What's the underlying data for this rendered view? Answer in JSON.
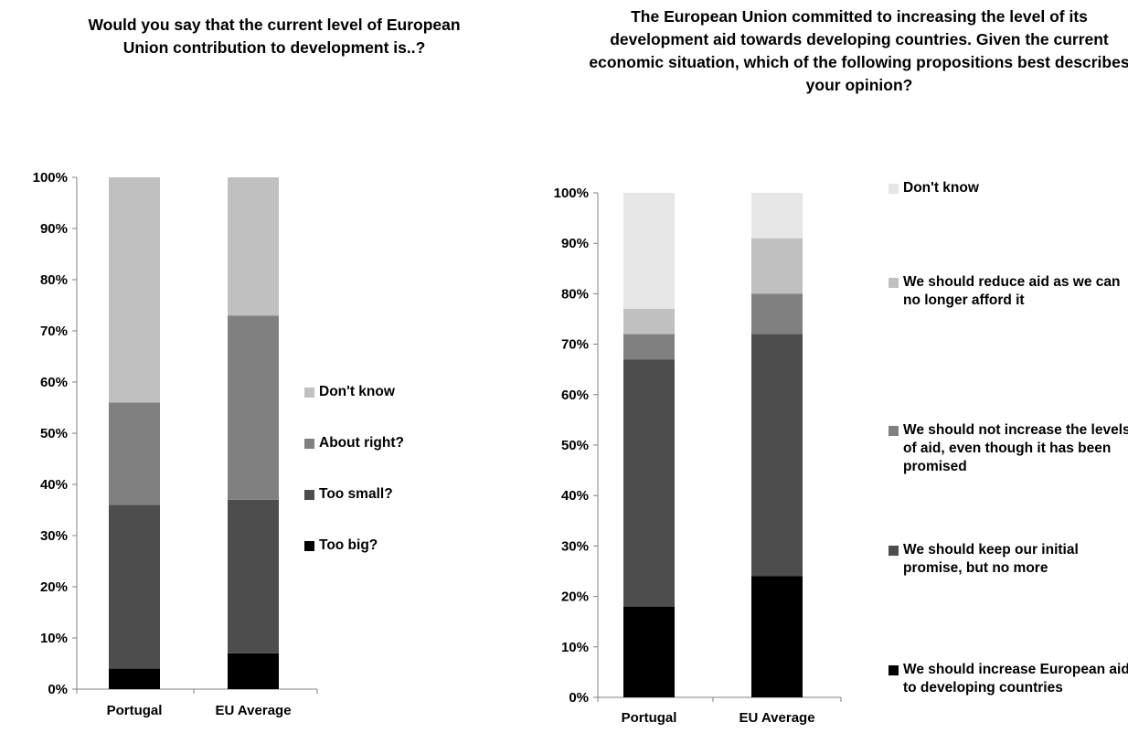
{
  "colors": {
    "too_big": "#000000",
    "too_small": "#4d4d4d",
    "about_right": "#808080",
    "dont_know_1": "#c0c0c0",
    "increase": "#000000",
    "keep": "#4d4d4d",
    "not_increase": "#808080",
    "reduce": "#c0c0c0",
    "dont_know_2": "#e6e6e6"
  },
  "chart_data": [
    {
      "type": "bar",
      "stacked": true,
      "title": "Would you say that the current level of European Union contribution to development is..?",
      "categories": [
        "Portugal",
        "EU Average"
      ],
      "ylim": [
        0,
        100
      ],
      "yticks": [
        "0%",
        "10%",
        "20%",
        "30%",
        "40%",
        "50%",
        "60%",
        "70%",
        "80%",
        "90%",
        "100%"
      ],
      "legend_position": "right",
      "series": [
        {
          "name": "Too big?",
          "values": [
            4,
            7
          ]
        },
        {
          "name": "Too small?",
          "values": [
            32,
            30
          ]
        },
        {
          "name": "About right?",
          "values": [
            20,
            36
          ]
        },
        {
          "name": "Don't know",
          "values": [
            44,
            27
          ]
        }
      ]
    },
    {
      "type": "bar",
      "stacked": true,
      "title": "The European Union committed to increasing the level of its development aid towards developing countries. Given the current economic situation, which of the following propositions best describes your opinion?",
      "categories": [
        "Portugal",
        "EU Average"
      ],
      "ylim": [
        0,
        100
      ],
      "yticks": [
        "0%",
        "10%",
        "20%",
        "30%",
        "40%",
        "50%",
        "60%",
        "70%",
        "80%",
        "90%",
        "100%"
      ],
      "legend_position": "right",
      "series": [
        {
          "name": "We should increase European aid to developing countries",
          "values": [
            18,
            24
          ]
        },
        {
          "name": "We should keep our initial promise, but no more",
          "values": [
            49,
            48
          ]
        },
        {
          "name": "We should not increase the levels of aid, even though it has been promised",
          "values": [
            5,
            8
          ]
        },
        {
          "name": "We should reduce aid as we can no longer afford it",
          "values": [
            5,
            11
          ]
        },
        {
          "name": "Don't know",
          "values": [
            23,
            9
          ]
        }
      ]
    }
  ]
}
